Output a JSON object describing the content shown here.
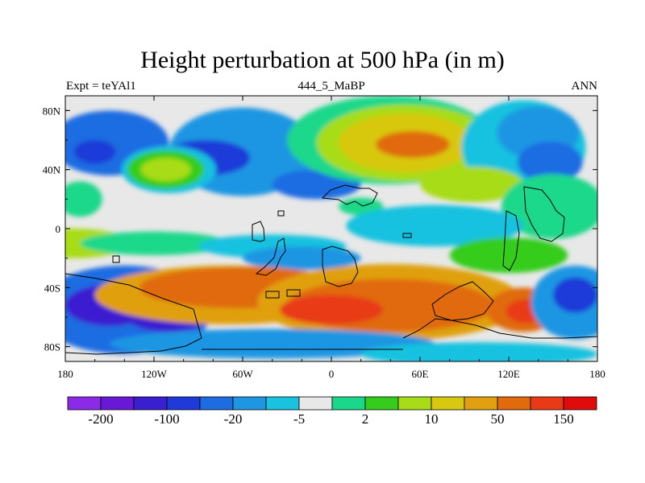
{
  "chart_data": {
    "type": "heatmap",
    "title": "Height perturbation at 500 hPa (in m)",
    "subtitle_left": "Expt = teYAl1",
    "subtitle_center": "444_5_MaBP",
    "subtitle_right": "ANN",
    "xlim": [
      -180,
      180
    ],
    "ylim": [
      -90,
      90
    ],
    "x_ticks": [
      {
        "value": -180,
        "label": "180"
      },
      {
        "value": -120,
        "label": "120W"
      },
      {
        "value": -60,
        "label": "60W"
      },
      {
        "value": 0,
        "label": "0"
      },
      {
        "value": 60,
        "label": "60E"
      },
      {
        "value": 120,
        "label": "120E"
      },
      {
        "value": 180,
        "label": "180"
      }
    ],
    "y_ticks": [
      {
        "value": 80,
        "label": "80N"
      },
      {
        "value": 40,
        "label": "40N"
      },
      {
        "value": 0,
        "label": "0"
      },
      {
        "value": -40,
        "label": "40S"
      },
      {
        "value": -80,
        "label": "80S"
      }
    ],
    "colorbar": {
      "colors": [
        "#8b2be8",
        "#6a18d8",
        "#3a1fd0",
        "#1f3ad8",
        "#1e6ce2",
        "#1e96e2",
        "#19c2df",
        "#e8e8e8",
        "#1ad88a",
        "#36cc1e",
        "#a8dc18",
        "#d8c810",
        "#e0a010",
        "#e06a0c",
        "#e83a16",
        "#e00c0c"
      ],
      "labels": [
        {
          "edge": 1,
          "text": "-200"
        },
        {
          "edge": 3,
          "text": "-100"
        },
        {
          "edge": 5,
          "text": "-20"
        },
        {
          "edge": 7,
          "text": "-5"
        },
        {
          "edge": 9,
          "text": "2"
        },
        {
          "edge": 11,
          "text": "10"
        },
        {
          "edge": 13,
          "text": "50"
        },
        {
          "edge": 15,
          "text": "150"
        }
      ]
    },
    "field_blobs": [
      {
        "lon": -150,
        "lat": 58,
        "rx": 40,
        "ry": 22,
        "level": 4
      },
      {
        "lon": -160,
        "lat": 52,
        "rx": 14,
        "ry": 8,
        "level": 3
      },
      {
        "lon": -60,
        "lat": 52,
        "rx": 50,
        "ry": 30,
        "level": 5
      },
      {
        "lon": -85,
        "lat": 48,
        "rx": 30,
        "ry": 12,
        "level": 3
      },
      {
        "lon": -110,
        "lat": 40,
        "rx": 32,
        "ry": 16,
        "level": 6
      },
      {
        "lon": -112,
        "lat": 40,
        "rx": 26,
        "ry": 13,
        "level": 9
      },
      {
        "lon": -112,
        "lat": 40,
        "rx": 17,
        "ry": 8,
        "level": 10
      },
      {
        "lon": -10,
        "lat": 30,
        "rx": 30,
        "ry": 10,
        "level": 4
      },
      {
        "lon": 40,
        "lat": 60,
        "rx": 70,
        "ry": 30,
        "level": 8
      },
      {
        "lon": 50,
        "lat": 58,
        "rx": 60,
        "ry": 26,
        "level": 10
      },
      {
        "lon": 50,
        "lat": 58,
        "rx": 45,
        "ry": 20,
        "level": 11
      },
      {
        "lon": 55,
        "lat": 57,
        "rx": 25,
        "ry": 9,
        "level": 13
      },
      {
        "lon": 130,
        "lat": 55,
        "rx": 42,
        "ry": 32,
        "level": 6
      },
      {
        "lon": 140,
        "lat": 65,
        "rx": 28,
        "ry": 18,
        "level": 5
      },
      {
        "lon": 148,
        "lat": 45,
        "rx": 22,
        "ry": 14,
        "level": 4
      },
      {
        "lon": 95,
        "lat": 30,
        "rx": 35,
        "ry": 12,
        "level": 10
      },
      {
        "lon": 150,
        "lat": 15,
        "rx": 35,
        "ry": 22,
        "level": 8
      },
      {
        "lon": 20,
        "lat": 15,
        "rx": 15,
        "ry": 6,
        "level": 8
      },
      {
        "lon": 70,
        "lat": 2,
        "rx": 60,
        "ry": 14,
        "level": 6
      },
      {
        "lon": -170,
        "lat": 20,
        "rx": 15,
        "ry": 12,
        "level": 8
      },
      {
        "lon": -175,
        "lat": -10,
        "rx": 40,
        "ry": 10,
        "level": 10
      },
      {
        "lon": -120,
        "lat": -10,
        "rx": 50,
        "ry": 8,
        "level": 8
      },
      {
        "lon": -40,
        "lat": -12,
        "rx": 50,
        "ry": 8,
        "level": 6
      },
      {
        "lon": -20,
        "lat": -20,
        "rx": 40,
        "ry": 8,
        "level": 5
      },
      {
        "lon": 120,
        "lat": -18,
        "rx": 40,
        "ry": 12,
        "level": 9
      },
      {
        "lon": -140,
        "lat": -55,
        "rx": 60,
        "ry": 30,
        "level": 4
      },
      {
        "lon": -150,
        "lat": -52,
        "rx": 30,
        "ry": 14,
        "level": 2
      },
      {
        "lon": -110,
        "lat": -58,
        "rx": 30,
        "ry": 12,
        "level": 2
      },
      {
        "lon": -70,
        "lat": -45,
        "rx": 90,
        "ry": 20,
        "level": 12
      },
      {
        "lon": -60,
        "lat": -40,
        "rx": 70,
        "ry": 14,
        "level": 13
      },
      {
        "lon": 40,
        "lat": -50,
        "rx": 90,
        "ry": 26,
        "level": 12
      },
      {
        "lon": 40,
        "lat": -52,
        "rx": 70,
        "ry": 18,
        "level": 13
      },
      {
        "lon": 0,
        "lat": -55,
        "rx": 35,
        "ry": 10,
        "level": 14
      },
      {
        "lon": 130,
        "lat": -55,
        "rx": 25,
        "ry": 15,
        "level": 13
      },
      {
        "lon": 132,
        "lat": -56,
        "rx": 14,
        "ry": 8,
        "level": 14
      },
      {
        "lon": 165,
        "lat": -50,
        "rx": 30,
        "ry": 25,
        "level": 5
      },
      {
        "lon": 165,
        "lat": -45,
        "rx": 15,
        "ry": 12,
        "level": 3
      },
      {
        "lon": -40,
        "lat": -78,
        "rx": 110,
        "ry": 10,
        "level": 5
      },
      {
        "lon": 100,
        "lat": -85,
        "rx": 80,
        "ry": 8,
        "level": 6
      }
    ]
  }
}
